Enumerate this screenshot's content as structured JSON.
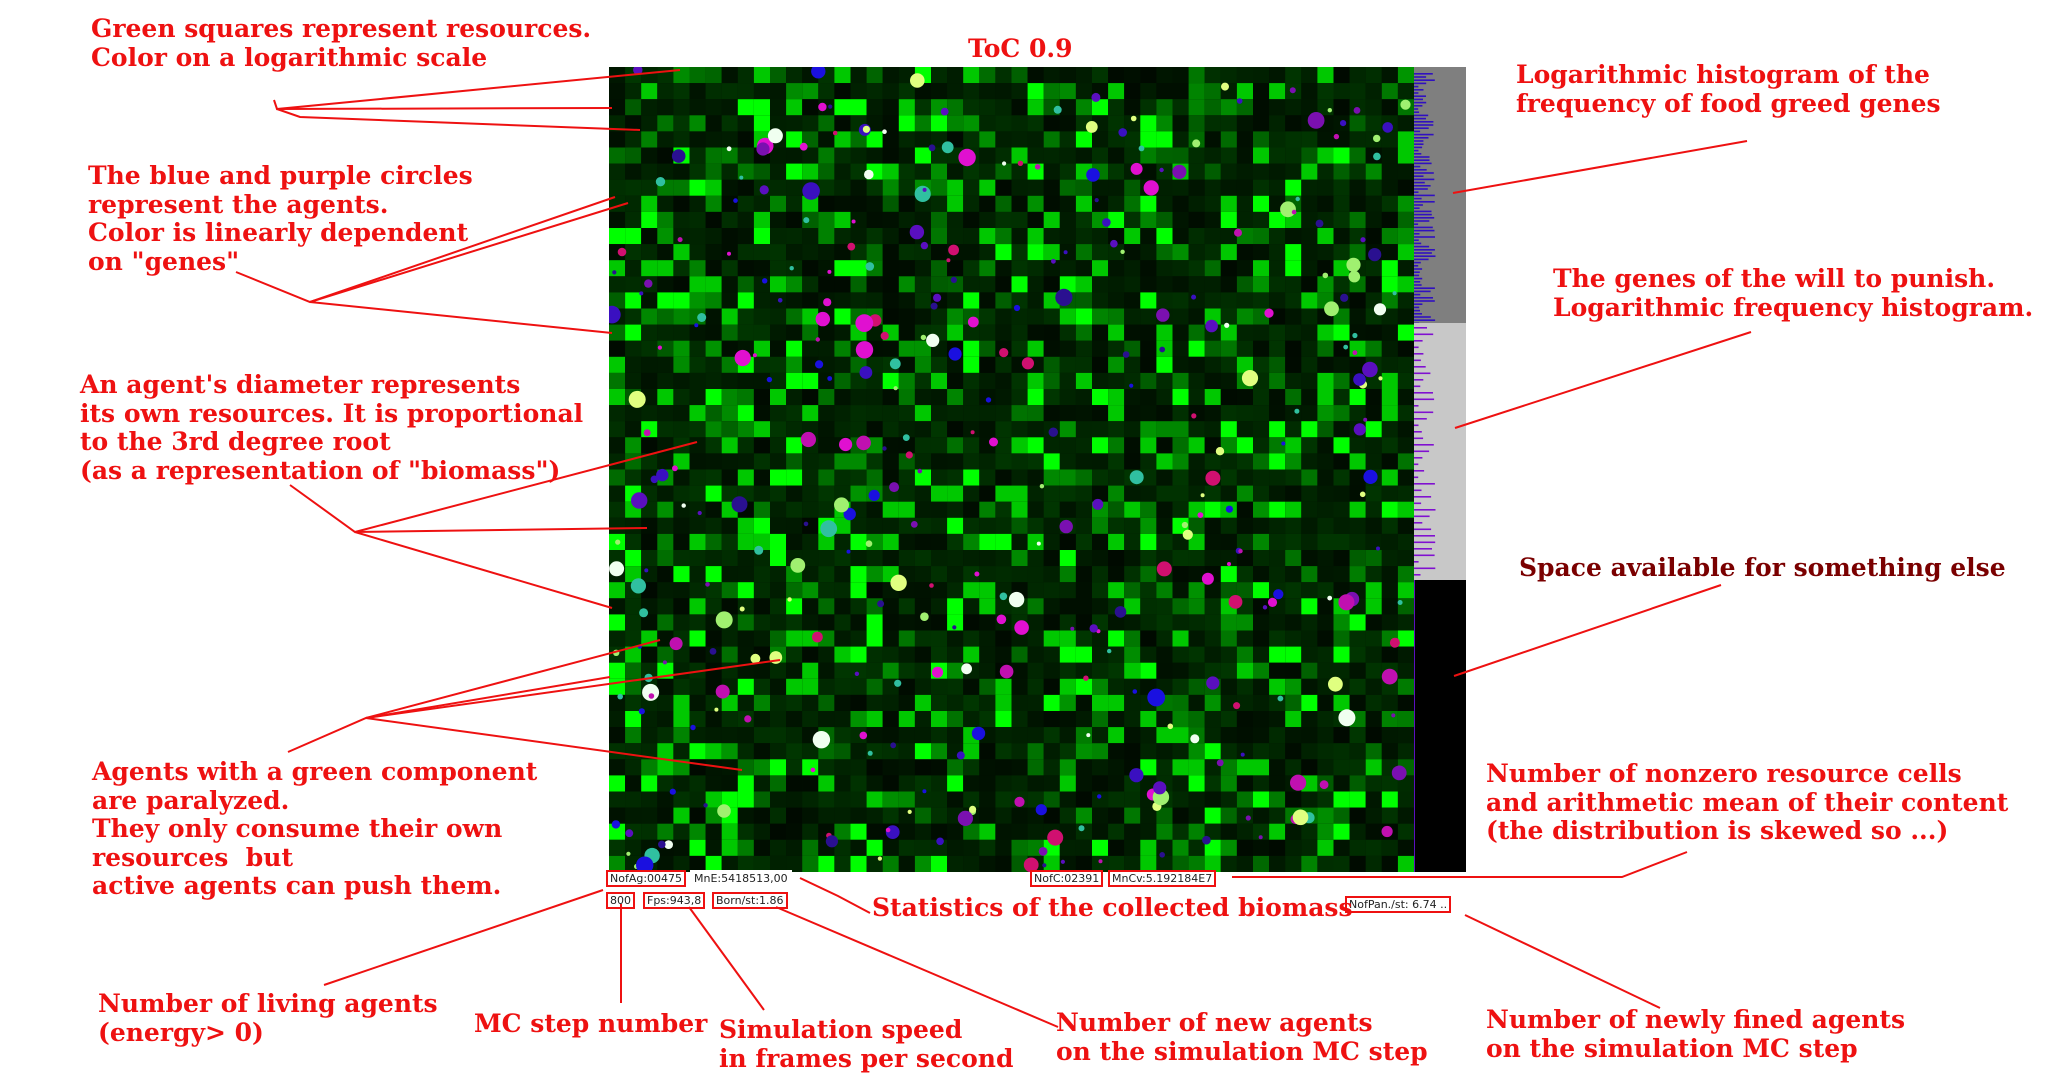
{
  "title": "ToC 0.9",
  "annotations": {
    "resources": [
      "Green squares represent resources.",
      "Color on a logarithmic scale"
    ],
    "agents": [
      "The blue and purple circles",
      "represent the agents.",
      "Color is linearly dependent",
      "on \"genes\""
    ],
    "diameter": [
      "An agent's diameter represents",
      "its own resources. It is proportional",
      "to the 3rd degree root",
      "(as a representation of \"biomass\")"
    ],
    "paralyzed": [
      "Agents with a green component",
      "are paralyzed.",
      "They only consume their own",
      "resources  but",
      "active agents can push them."
    ],
    "food_histogram": [
      "Logarithmic histogram of the",
      "frequency of food greed genes"
    ],
    "punish_histogram": [
      "The genes of the will to punish.",
      "Logarithmic frequency histogram."
    ],
    "space": [
      "Space available for something else"
    ],
    "nonzero": [
      "Number of nonzero resource cells",
      "and arithmetic mean of their content",
      "(the distribution is skewed so ...)"
    ],
    "biomass_stats": [
      "Statistics of the collected biomass"
    ],
    "newly_fined": [
      "Number of newly fined agents",
      "on the simulation MC step"
    ],
    "living_agents": [
      "Number of living agents",
      "(energy> 0)"
    ],
    "mc_step": [
      "MC step number"
    ],
    "speed": [
      "Simulation speed",
      "in frames per second"
    ],
    "new_agents": [
      "Number of new agents",
      "on the simulation MC step"
    ]
  },
  "stats": {
    "nofag": "NofAg:00475",
    "mne": "MnE:5418513,00",
    "nofc": "NofC:02391",
    "mncv": "MnCv:5.192184E7",
    "step": "800",
    "fps": "Fps:943,8",
    "born": "Born/st:1.86",
    "nofpan": "NofPan./st: 6.74 .."
  },
  "colors": {
    "annotation_red": "#ee1111",
    "annotation_dark_red": "#7a0000",
    "resource_green": "#00ff00",
    "agent_blue": "#1010e0",
    "agent_purple": "#5a0fbf",
    "histogram_bar": "#6a00c0",
    "panel_top": "#7f7f7f",
    "panel_mid": "#c8c8c8",
    "panel_bottom": "#000000"
  }
}
